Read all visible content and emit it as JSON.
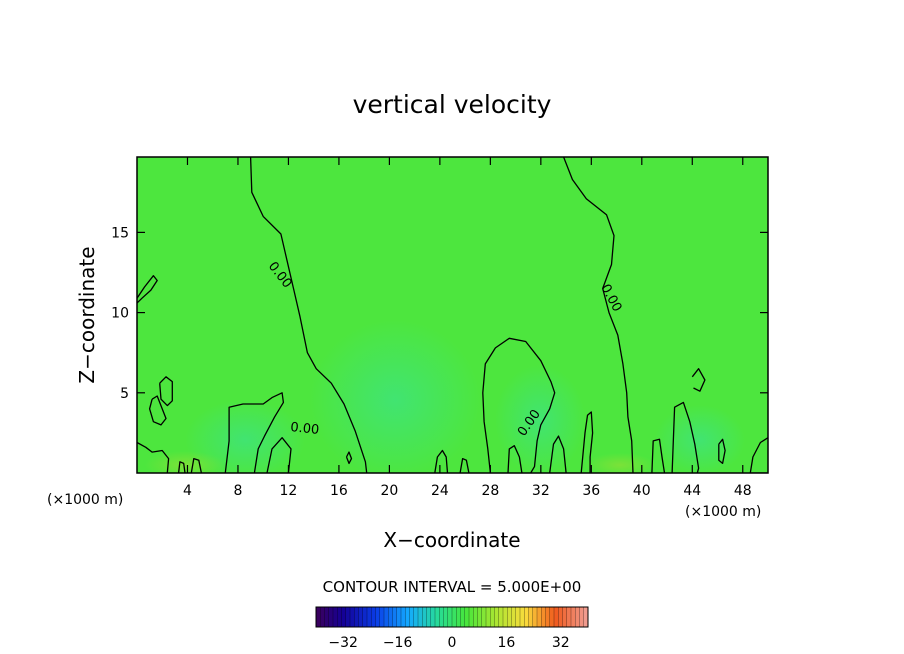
{
  "chart_data": {
    "type": "heatmap",
    "title": "vertical velocity",
    "xlabel": "X−coordinate",
    "ylabel": "Z−coordinate",
    "x_unit": "(×1000 m)",
    "xlim": [
      0,
      50
    ],
    "ylim": [
      0,
      19.7
    ],
    "x_ticks": [
      4,
      8,
      12,
      16,
      20,
      24,
      28,
      32,
      36,
      40,
      44,
      48
    ],
    "y_ticks": [
      5,
      10,
      15
    ],
    "contour_interval_text": "CONTOUR INTERVAL = 5.000E+00",
    "contour_labels": [
      "0.00",
      "0.00",
      "0.00",
      "0.00"
    ],
    "colorbar": {
      "range": [
        -40,
        40
      ],
      "tick_values": [
        -32,
        -16,
        0,
        16,
        32
      ],
      "tick_labels": [
        "−32",
        "−16",
        "0",
        "16",
        "32"
      ]
    },
    "zero_contours": [
      [
        [
          9.0,
          19.7
        ],
        [
          9.1,
          17.5
        ],
        [
          10.0,
          16.0
        ],
        [
          11.4,
          14.9
        ],
        [
          11.9,
          13.2
        ],
        [
          12.4,
          11.5
        ],
        [
          12.9,
          9.8
        ],
        [
          13.5,
          7.5
        ],
        [
          14.2,
          6.5
        ],
        [
          15.4,
          5.6
        ],
        [
          16.4,
          4.3
        ],
        [
          17.3,
          2.6
        ],
        [
          18.1,
          0.7
        ],
        [
          18.2,
          0
        ]
      ],
      [
        [
          33.8,
          19.7
        ],
        [
          34.5,
          18.3
        ],
        [
          35.6,
          17.1
        ],
        [
          37.2,
          16.1
        ],
        [
          37.8,
          14.8
        ],
        [
          37.6,
          13.0
        ],
        [
          36.9,
          11.5
        ],
        [
          37.4,
          10.0
        ],
        [
          38.1,
          8.6
        ],
        [
          38.5,
          6.8
        ],
        [
          38.8,
          5.0
        ],
        [
          38.9,
          3.5
        ],
        [
          39.2,
          2.0
        ],
        [
          39.3,
          0
        ]
      ],
      [
        [
          28.0,
          0
        ],
        [
          27.8,
          1.5
        ],
        [
          27.5,
          3.2
        ],
        [
          27.4,
          5.0
        ],
        [
          27.6,
          6.8
        ],
        [
          28.4,
          7.8
        ],
        [
          29.5,
          8.4
        ],
        [
          30.8,
          8.2
        ],
        [
          32.0,
          7.0
        ],
        [
          32.8,
          5.7
        ],
        [
          33.1,
          5.0
        ],
        [
          32.7,
          4.0
        ],
        [
          32.0,
          3.0
        ],
        [
          31.7,
          2.0
        ],
        [
          31.5,
          0.4
        ],
        [
          31.2,
          0
        ]
      ],
      [
        [
          0,
          10.9
        ],
        [
          0.6,
          11.6
        ],
        [
          1.3,
          12.3
        ],
        [
          1.6,
          12.0
        ],
        [
          1.1,
          11.4
        ],
        [
          0.4,
          10.9
        ],
        [
          0,
          10.6
        ]
      ],
      [
        [
          1.8,
          5.6
        ],
        [
          2.3,
          6.0
        ],
        [
          2.8,
          5.7
        ],
        [
          2.8,
          4.5
        ],
        [
          2.4,
          4.2
        ],
        [
          1.9,
          4.6
        ],
        [
          1.8,
          5.6
        ]
      ],
      [
        [
          1.2,
          4.6
        ],
        [
          1.6,
          4.8
        ],
        [
          2.3,
          3.4
        ],
        [
          1.9,
          3.0
        ],
        [
          1.3,
          3.2
        ],
        [
          1.0,
          4.0
        ],
        [
          1.2,
          4.6
        ]
      ],
      [
        [
          12.0,
          0
        ],
        [
          12.2,
          1.5
        ],
        [
          11.5,
          2.2
        ],
        [
          10.7,
          1.5
        ],
        [
          10.3,
          0
        ]
      ],
      [
        [
          7.0,
          0
        ],
        [
          7.3,
          2.0
        ],
        [
          7.3,
          4.1
        ],
        [
          8.4,
          4.3
        ],
        [
          10.0,
          4.3
        ],
        [
          10.7,
          4.7
        ],
        [
          11.5,
          5.0
        ],
        [
          11.6,
          4.4
        ],
        [
          10.9,
          3.5
        ],
        [
          10.1,
          2.3
        ],
        [
          9.6,
          1.5
        ],
        [
          9.3,
          0
        ]
      ],
      [
        [
          44.0,
          6.0
        ],
        [
          44.5,
          6.5
        ],
        [
          45.0,
          5.8
        ],
        [
          44.6,
          5.1
        ],
        [
          44.1,
          5.3
        ]
      ],
      [
        [
          46.1,
          1.8
        ],
        [
          46.4,
          2.1
        ],
        [
          46.6,
          1.4
        ],
        [
          46.4,
          0.6
        ],
        [
          46.1,
          0.8
        ],
        [
          46.1,
          1.8
        ]
      ],
      [
        [
          16.6,
          1.0
        ],
        [
          16.8,
          1.3
        ],
        [
          17.0,
          0.9
        ],
        [
          16.8,
          0.6
        ],
        [
          16.6,
          1.0
        ]
      ],
      [
        [
          23.6,
          0
        ],
        [
          23.8,
          1.0
        ],
        [
          24.2,
          1.4
        ],
        [
          24.5,
          1.0
        ],
        [
          24.6,
          0
        ]
      ],
      [
        [
          25.6,
          0
        ],
        [
          25.8,
          0.9
        ],
        [
          26.1,
          0.8
        ],
        [
          26.3,
          0
        ]
      ],
      [
        [
          29.4,
          0
        ],
        [
          29.5,
          1.5
        ],
        [
          29.9,
          1.7
        ],
        [
          30.3,
          1.0
        ],
        [
          30.5,
          0
        ]
      ],
      [
        [
          32.7,
          0
        ],
        [
          33.0,
          1.8
        ],
        [
          33.4,
          2.3
        ],
        [
          33.8,
          1.5
        ],
        [
          34.0,
          0
        ]
      ],
      [
        [
          35.2,
          0
        ],
        [
          35.5,
          2.5
        ],
        [
          35.7,
          3.6
        ],
        [
          36.0,
          3.8
        ],
        [
          36.1,
          2.5
        ],
        [
          35.9,
          1.0
        ],
        [
          35.9,
          0
        ]
      ],
      [
        [
          42.4,
          0
        ],
        [
          42.6,
          4.1
        ],
        [
          43.3,
          4.4
        ],
        [
          43.8,
          3.2
        ],
        [
          44.2,
          1.8
        ],
        [
          44.5,
          0.3
        ],
        [
          44.4,
          0
        ]
      ],
      [
        [
          50.0,
          2.2
        ],
        [
          49.4,
          1.9
        ],
        [
          48.8,
          1.0
        ],
        [
          48.6,
          0
        ],
        [
          50.0,
          0
        ]
      ],
      [
        [
          2.4,
          0
        ],
        [
          2.5,
          0.9
        ],
        [
          2.0,
          1.4
        ],
        [
          1.2,
          1.3
        ],
        [
          0.7,
          1.6
        ],
        [
          0,
          1.9
        ]
      ],
      [
        [
          40.8,
          0
        ],
        [
          40.9,
          2.0
        ],
        [
          41.4,
          2.1
        ],
        [
          41.6,
          1.0
        ],
        [
          41.8,
          0
        ]
      ],
      [
        [
          4.3,
          0
        ],
        [
          4.5,
          0.9
        ],
        [
          4.9,
          0.8
        ],
        [
          5.1,
          0
        ]
      ],
      [
        [
          3.3,
          0
        ],
        [
          3.4,
          0.7
        ],
        [
          3.7,
          0.6
        ],
        [
          3.8,
          0
        ]
      ]
    ]
  }
}
